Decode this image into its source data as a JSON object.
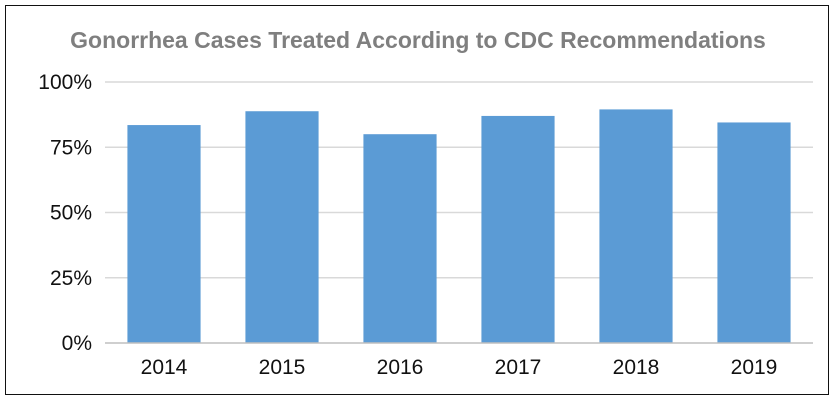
{
  "chart_data": {
    "type": "bar",
    "title": "Gonorrhea Cases Treated According to CDC Recommendations",
    "xlabel": "",
    "ylabel": "",
    "categories": [
      "2014",
      "2015",
      "2016",
      "2017",
      "2018",
      "2019"
    ],
    "values": [
      83.5,
      88.8,
      80.0,
      87.0,
      89.5,
      84.5
    ],
    "ylim": [
      0,
      100
    ],
    "yticks": [
      0,
      25,
      50,
      75,
      100
    ],
    "ytick_labels": [
      "0%",
      "25%",
      "50%",
      "75%",
      "100%"
    ],
    "grid": true,
    "legend": "none",
    "colors": {
      "bar": "#5b9bd5",
      "grid": "#d9d9d9",
      "axis": "#bfbfbf",
      "title": "#7f7f7f",
      "text": "#111111"
    }
  }
}
